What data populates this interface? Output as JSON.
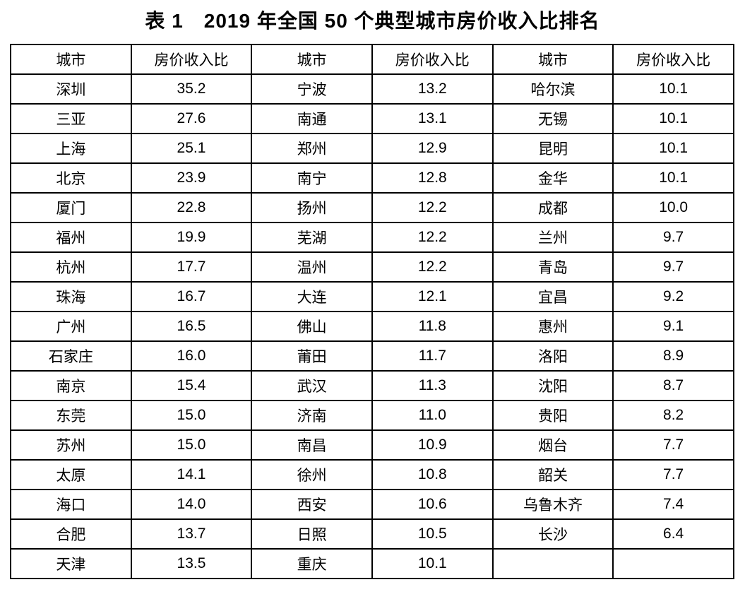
{
  "title": "表 1　2019 年全国 50 个典型城市房价收入比排名",
  "colors": {
    "text": "#000000",
    "border": "#000000",
    "background": "#ffffff"
  },
  "table": {
    "column_headers": [
      "城市",
      "房价收入比",
      "城市",
      "房价收入比",
      "城市",
      "房价收入比"
    ],
    "rows": [
      [
        "深圳",
        "35.2",
        "宁波",
        "13.2",
        "哈尔滨",
        "10.1"
      ],
      [
        "三亚",
        "27.6",
        "南通",
        "13.1",
        "无锡",
        "10.1"
      ],
      [
        "上海",
        "25.1",
        "郑州",
        "12.9",
        "昆明",
        "10.1"
      ],
      [
        "北京",
        "23.9",
        "南宁",
        "12.8",
        "金华",
        "10.1"
      ],
      [
        "厦门",
        "22.8",
        "扬州",
        "12.2",
        "成都",
        "10.0"
      ],
      [
        "福州",
        "19.9",
        "芜湖",
        "12.2",
        "兰州",
        "9.7"
      ],
      [
        "杭州",
        "17.7",
        "温州",
        "12.2",
        "青岛",
        "9.7"
      ],
      [
        "珠海",
        "16.7",
        "大连",
        "12.1",
        "宜昌",
        "9.2"
      ],
      [
        "广州",
        "16.5",
        "佛山",
        "11.8",
        "惠州",
        "9.1"
      ],
      [
        "石家庄",
        "16.0",
        "莆田",
        "11.7",
        "洛阳",
        "8.9"
      ],
      [
        "南京",
        "15.4",
        "武汉",
        "11.3",
        "沈阳",
        "8.7"
      ],
      [
        "东莞",
        "15.0",
        "济南",
        "11.0",
        "贵阳",
        "8.2"
      ],
      [
        "苏州",
        "15.0",
        "南昌",
        "10.9",
        "烟台",
        "7.7"
      ],
      [
        "太原",
        "14.1",
        "徐州",
        "10.8",
        "韶关",
        "7.7"
      ],
      [
        "海口",
        "14.0",
        "西安",
        "10.6",
        "乌鲁木齐",
        "7.4"
      ],
      [
        "合肥",
        "13.7",
        "日照",
        "10.5",
        "长沙",
        "6.4"
      ],
      [
        "天津",
        "13.5",
        "重庆",
        "10.1",
        "",
        ""
      ]
    ]
  }
}
